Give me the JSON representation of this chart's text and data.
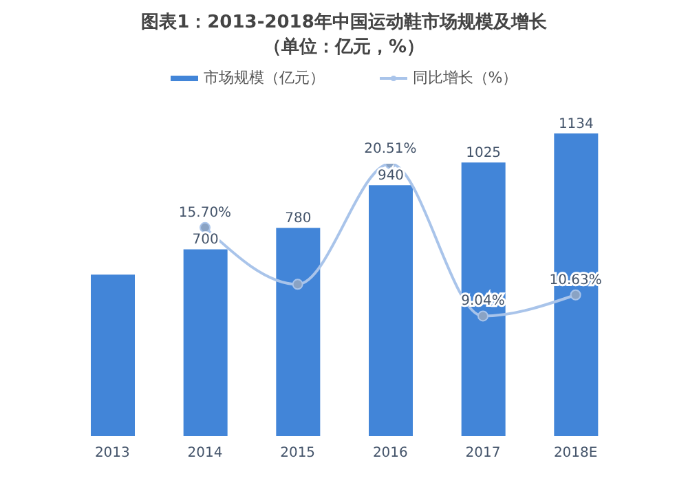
{
  "chart_data": {
    "type": "bar",
    "title": "图表1：2013-2018年中国运动鞋市场规模及增长（单位：亿元，%）",
    "categories": [
      "2013",
      "2014",
      "2015",
      "2016",
      "2017",
      "2018E"
    ],
    "series": [
      {
        "name": "市场规模（亿元）",
        "color": "#4285d8",
        "values": [
          605,
          700,
          780,
          940,
          1025,
          1134
        ],
        "value_labels": [
          null,
          "700",
          "780",
          "940",
          "1025",
          "1134"
        ]
      },
      {
        "name": "同比增长（%）",
        "type": "line",
        "axis": "y2",
        "color": "#a9c4ea",
        "values": [
          null,
          15.7,
          11.43,
          20.51,
          9.04,
          10.63
        ],
        "value_labels": [
          null,
          "15.70%",
          null,
          "20.51%",
          "9.04%",
          "10.63%"
        ]
      }
    ],
    "tick_labels": "x",
    "legend": "top",
    "marker": "circle",
    "grid": false
  }
}
